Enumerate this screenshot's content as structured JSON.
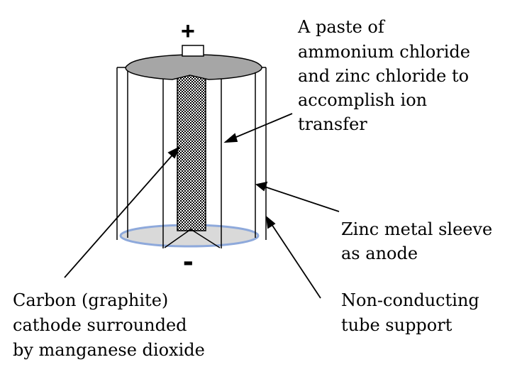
{
  "terminals": {
    "positive": "+",
    "negative": "-"
  },
  "labels": {
    "paste": [
      "A paste of",
      "ammonium chloride",
      "and zinc chloride to",
      "accomplish ion",
      "transfer"
    ],
    "zinc": [
      "Zinc metal sleeve",
      "as anode"
    ],
    "support": [
      "Non-conducting",
      "tube support"
    ],
    "carbon": [
      "Carbon (graphite)",
      "cathode surrounded",
      "by manganese dioxide"
    ]
  },
  "colors": {
    "top_cap": "#a6a6a6",
    "bottom_disc": "#d9d9d9",
    "bottom_ring": "#8ea9db",
    "rod_hatch": "#000000",
    "line": "#000000"
  }
}
